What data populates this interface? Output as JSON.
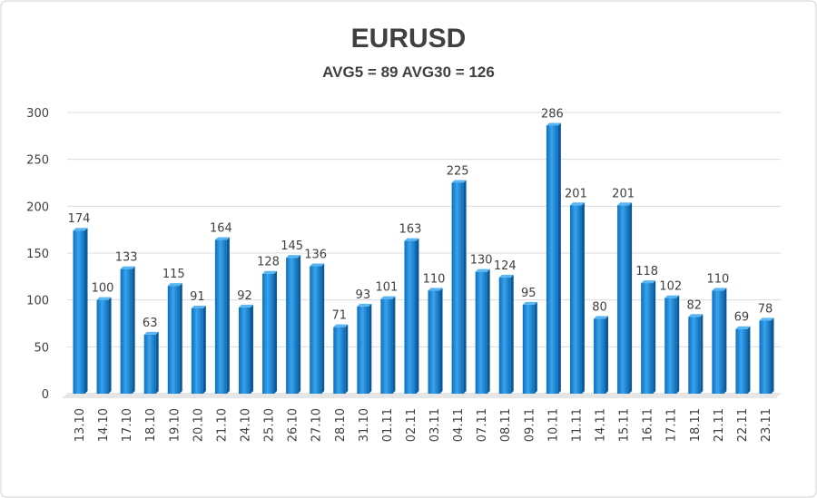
{
  "chart_data": {
    "type": "bar",
    "title": "EURUSD",
    "subtitle": "AVG5 = 89 AVG30 = 126",
    "xlabel": "",
    "ylabel": "",
    "ylim": [
      0,
      300
    ],
    "yticks": [
      0,
      50,
      100,
      150,
      200,
      250,
      300
    ],
    "grid": true,
    "legend": "none",
    "bar_color": "#1f8ad6",
    "categories": [
      "13.10",
      "14.10",
      "17.10",
      "18.10",
      "19.10",
      "20.10",
      "21.10",
      "24.10",
      "25.10",
      "26.10",
      "27.10",
      "28.10",
      "31.10",
      "01.11",
      "02.11",
      "03.11",
      "04.11",
      "07.11",
      "08.11",
      "09.11",
      "10.11",
      "11.11",
      "14.11",
      "15.11",
      "16.11",
      "17.11",
      "18.11",
      "21.11",
      "22.11",
      "23.11"
    ],
    "values": [
      174,
      100,
      133,
      63,
      115,
      91,
      164,
      92,
      128,
      145,
      136,
      71,
      93,
      101,
      163,
      110,
      225,
      130,
      124,
      95,
      286,
      201,
      80,
      201,
      118,
      102,
      82,
      110,
      69,
      78
    ]
  }
}
